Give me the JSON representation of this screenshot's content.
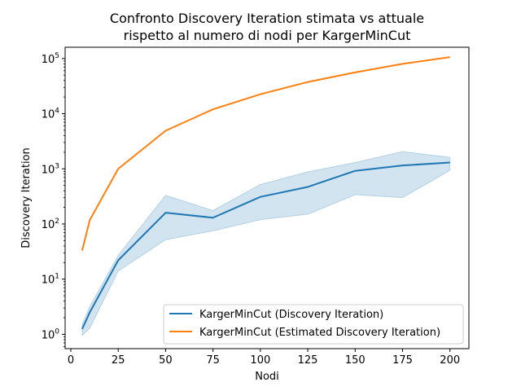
{
  "chart_data": {
    "type": "line",
    "title_line1": "Confronto Discovery Iteration stimata vs attuale",
    "title_line2": "rispetto al numero di nodi per KargerMinCut",
    "xlabel": "Nodi",
    "ylabel": "Discovery Iteration",
    "xlim": [
      -3,
      210
    ],
    "ylim": [
      0.55,
      160000
    ],
    "y_scale": "log",
    "x_ticks": [
      0,
      25,
      50,
      75,
      100,
      125,
      150,
      175,
      200
    ],
    "x_tick_labels": [
      "0",
      "25",
      "50",
      "75",
      "100",
      "125",
      "150",
      "175",
      "200"
    ],
    "y_ticks": [
      1,
      10,
      100,
      1000,
      10000,
      100000
    ],
    "y_tick_labels": [
      {
        "base": "10",
        "exp": "0"
      },
      {
        "base": "10",
        "exp": "1"
      },
      {
        "base": "10",
        "exp": "2"
      },
      {
        "base": "10",
        "exp": "3"
      },
      {
        "base": "10",
        "exp": "4"
      },
      {
        "base": "10",
        "exp": "5"
      }
    ],
    "legend_position": "lower-right",
    "grid": false,
    "series": [
      {
        "name": "KargerMinCut (Discovery Iteration)",
        "color": "#1f77b4",
        "x": [
          6,
          10,
          25,
          50,
          75,
          100,
          125,
          150,
          175,
          200
        ],
        "y": [
          1.25,
          2.5,
          22,
          160,
          130,
          310,
          470,
          920,
          1150,
          1300
        ],
        "band_low": [
          0.95,
          1.3,
          14,
          52,
          75,
          120,
          150,
          340,
          300,
          940
        ],
        "band_high": [
          1.5,
          3.2,
          27,
          330,
          175,
          520,
          880,
          1300,
          2050,
          1620
        ]
      },
      {
        "name": "KargerMinCut (Estimated Discovery Iteration)",
        "color": "#ff7f0e",
        "x": [
          6,
          10,
          25,
          50,
          75,
          100,
          125,
          150,
          175,
          200
        ],
        "y": [
          33,
          118,
          1000,
          4900,
          12000,
          22500,
          37500,
          56000,
          80000,
          106000
        ]
      }
    ]
  }
}
